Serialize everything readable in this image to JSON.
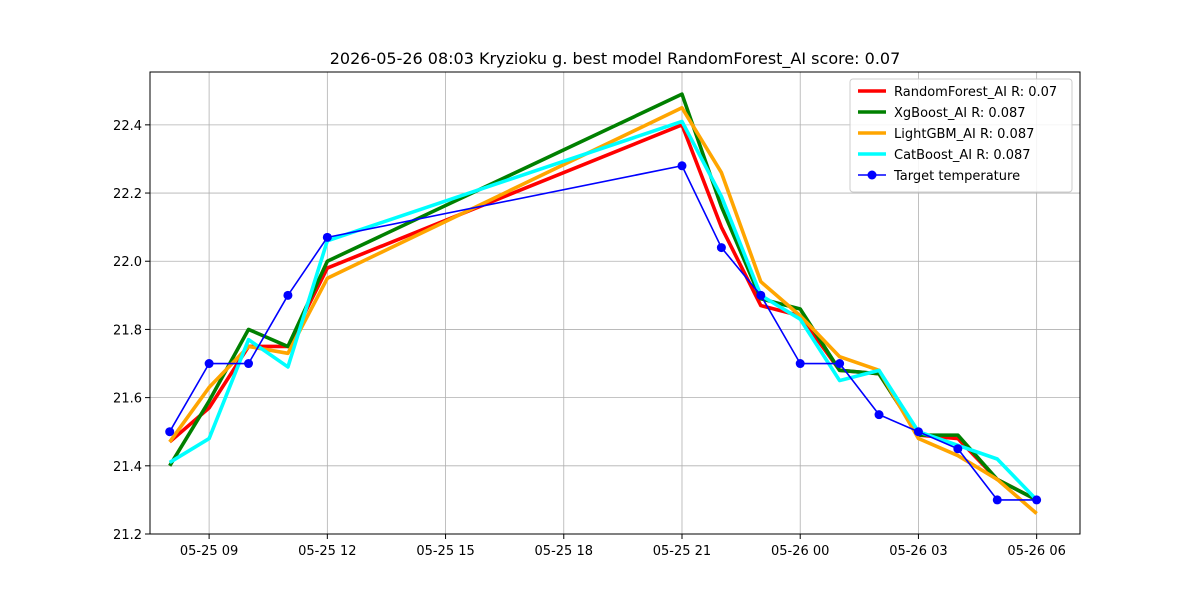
{
  "chart_data": {
    "type": "line",
    "title": "2026-05-26 08:03 Kryzioku g. best model RandomForest_AI score: 0.07",
    "xlabel": "",
    "ylabel": "",
    "x_unit": "hours",
    "xlim": [
      7.5,
      31.1
    ],
    "ylim": [
      21.2,
      22.555
    ],
    "x_ticks": [
      {
        "value": 9,
        "label": "05-25 09"
      },
      {
        "value": 12,
        "label": "05-25 12"
      },
      {
        "value": 15,
        "label": "05-25 15"
      },
      {
        "value": 18,
        "label": "05-25 18"
      },
      {
        "value": 21,
        "label": "05-25 21"
      },
      {
        "value": 24,
        "label": "05-26 00"
      },
      {
        "value": 27,
        "label": "05-26 03"
      },
      {
        "value": 30,
        "label": "05-26 06"
      }
    ],
    "y_ticks": [
      21.2,
      21.4,
      21.6,
      21.8,
      22.0,
      22.2,
      22.4
    ],
    "grid": true,
    "legend_position": "top-right",
    "x": [
      8,
      9,
      10,
      11,
      12,
      21,
      22,
      23,
      24,
      25,
      26,
      27,
      28,
      29,
      30
    ],
    "series": [
      {
        "name": "RandomForest_AI R: 0.07",
        "color": "#ff0000",
        "marker": false,
        "values": [
          21.47,
          21.57,
          21.75,
          21.75,
          21.98,
          22.4,
          22.1,
          21.87,
          21.84,
          21.68,
          21.67,
          21.49,
          21.48,
          21.36,
          21.3
        ]
      },
      {
        "name": "XgBoost_AI R: 0.087",
        "color": "#008000",
        "marker": false,
        "values": [
          21.4,
          21.59,
          21.8,
          21.75,
          22.0,
          22.49,
          22.16,
          21.89,
          21.86,
          21.68,
          21.67,
          21.49,
          21.49,
          21.36,
          21.3
        ]
      },
      {
        "name": "LightGBM_AI R: 0.087",
        "color": "#ffa500",
        "marker": false,
        "values": [
          21.47,
          21.63,
          21.75,
          21.73,
          21.95,
          22.45,
          22.26,
          21.94,
          21.84,
          21.72,
          21.68,
          21.48,
          21.43,
          21.36,
          21.26
        ]
      },
      {
        "name": "CatBoost_AI R: 0.087",
        "color": "#00ffff",
        "marker": false,
        "values": [
          21.41,
          21.48,
          21.77,
          21.69,
          22.06,
          22.41,
          22.19,
          21.9,
          21.83,
          21.65,
          21.68,
          21.5,
          21.46,
          21.42,
          21.3
        ]
      },
      {
        "name": "Target temperature",
        "color": "#0000ff",
        "marker": true,
        "values": [
          21.5,
          21.7,
          21.7,
          21.9,
          22.07,
          22.28,
          22.04,
          21.9,
          21.7,
          21.7,
          21.55,
          21.5,
          21.45,
          21.3,
          21.3
        ]
      }
    ]
  }
}
